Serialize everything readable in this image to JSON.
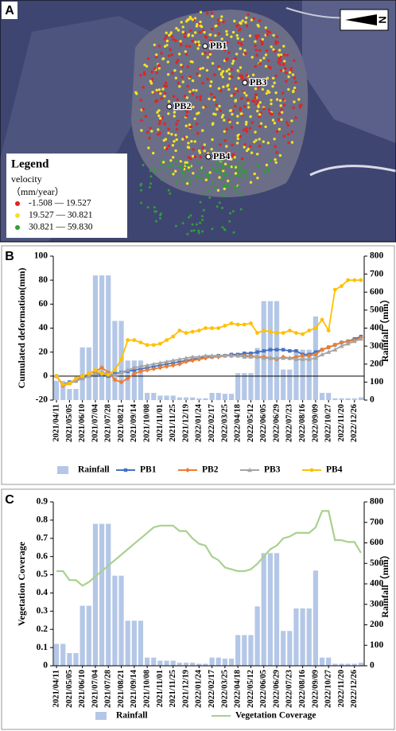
{
  "map": {
    "label": "A",
    "north": "N",
    "legend_title": "Legend",
    "legend_field": "velocity",
    "legend_unit": "（mm/year）",
    "classes": [
      {
        "label": "-1.508 — 19.527",
        "color": "#e02424"
      },
      {
        "label": "19.527 — 30.821",
        "color": "#f2e22a"
      },
      {
        "label": "30.821 — 59.830",
        "color": "#2f9e3a"
      }
    ],
    "points": [
      "PB1",
      "PB2",
      "PB3",
      "PB4"
    ]
  },
  "chart_data": [
    {
      "type": "combo",
      "label": "B",
      "categories": [
        "2021/04/11",
        null,
        "2021/05/05",
        null,
        "2021/06/10",
        null,
        "2021/07/04",
        null,
        "2021/07/28",
        null,
        "2021/08/21",
        null,
        "2021/09/14",
        null,
        "2021/10/08",
        null,
        "2021/11/01",
        null,
        "2021/11/25",
        null,
        "2021/12/19",
        null,
        "2022/01/24",
        null,
        "2022/02/17",
        null,
        "2022/03/25",
        null,
        "2022/04/18",
        null,
        "2022/05/12",
        null,
        "2022/06/05",
        null,
        "2022/06/29",
        null,
        "2022/07/23",
        null,
        "2022/08/16",
        null,
        "2022/09/09",
        null,
        "2022/10/27",
        null,
        "2022/11/20",
        null,
        "2022/12/26",
        null
      ],
      "ylabel": "Cumulated deformation(mm)",
      "y2label": "Rainfall（mm）",
      "ylim": [
        -20,
        100
      ],
      "yticks": [
        -20,
        0,
        20,
        40,
        60,
        80,
        100
      ],
      "y2lim": [
        0,
        800
      ],
      "y2ticks": [
        0,
        100,
        200,
        300,
        400,
        500,
        600,
        700,
        800
      ],
      "series": [
        {
          "name": "Rainfall",
          "kind": "bar",
          "axis": "y2",
          "color": "#b4c7e7",
          "values": [
            107,
            107,
            62,
            62,
            293,
            293,
            693,
            693,
            693,
            440,
            440,
            220,
            220,
            220,
            40,
            40,
            25,
            25,
            25,
            15,
            15,
            15,
            10,
            10,
            40,
            40,
            35,
            35,
            150,
            150,
            150,
            290,
            550,
            550,
            550,
            170,
            170,
            280,
            280,
            280,
            465,
            40,
            40,
            10,
            10,
            10,
            10,
            15
          ]
        },
        {
          "name": "PB1",
          "kind": "line",
          "marker": "square",
          "color": "#4472c4",
          "values": [
            0,
            -7,
            -5,
            -4,
            -2,
            0,
            2,
            1,
            0,
            2,
            3,
            4,
            5,
            6,
            7,
            8,
            9,
            10,
            11,
            12,
            13,
            14,
            15,
            16,
            16,
            17,
            17,
            18,
            18,
            19,
            19,
            20,
            21,
            22,
            22,
            22,
            21,
            21,
            18,
            18,
            20,
            22,
            24,
            26,
            28,
            29,
            31,
            33
          ]
        },
        {
          "name": "PB2",
          "kind": "line",
          "marker": "diamond",
          "color": "#ed7d31",
          "values": [
            0,
            -8,
            -6,
            -4,
            0,
            2,
            4,
            7,
            3,
            -3,
            -5,
            -2,
            2,
            4,
            5,
            6,
            7,
            8,
            9,
            10,
            12,
            13,
            14,
            15,
            16,
            16,
            17,
            17,
            17,
            17,
            17,
            16,
            16,
            15,
            14,
            16,
            15,
            16,
            17,
            17,
            18,
            22,
            24,
            26,
            28,
            29,
            30,
            32
          ]
        },
        {
          "name": "PB3",
          "kind": "line",
          "marker": "triangle",
          "color": "#a5a5a5",
          "values": [
            0,
            -7,
            -6,
            -4,
            -2,
            0,
            2,
            3,
            2,
            1,
            3,
            5,
            7,
            8,
            9,
            10,
            11,
            12,
            13,
            14,
            15,
            16,
            16,
            17,
            17,
            17,
            17,
            17,
            17,
            16,
            16,
            16,
            15,
            15,
            15,
            15,
            15,
            14,
            14,
            14,
            15,
            18,
            20,
            22,
            25,
            27,
            29,
            31
          ]
        },
        {
          "name": "PB4",
          "kind": "line",
          "marker": "circle",
          "color": "#ffc000",
          "values": [
            0,
            -7,
            -6,
            -2,
            0,
            2,
            5,
            2,
            1,
            5,
            14,
            30,
            30,
            28,
            26,
            26,
            27,
            30,
            33,
            38,
            36,
            37,
            38,
            40,
            40,
            40,
            42,
            44,
            43,
            43,
            44,
            36,
            38,
            37,
            36,
            36,
            38,
            36,
            35,
            38,
            40,
            47,
            38,
            72,
            75,
            80,
            80,
            80
          ]
        }
      ]
    },
    {
      "type": "combo",
      "label": "C",
      "categories": [
        "2021/04/11",
        null,
        "2021/05/05",
        null,
        "2021/06/10",
        null,
        "2021/07/04",
        null,
        "2021/07/28",
        null,
        "2021/08/21",
        null,
        "2021/09/14",
        null,
        "2021/10/08",
        null,
        "2021/11/01",
        null,
        "2021/11/25",
        null,
        "2021/12/19",
        null,
        "2022/01/24",
        null,
        "2022/02/17",
        null,
        "2022/03/25",
        null,
        "2022/04/18",
        null,
        "2022/05/12",
        null,
        "2022/06/05",
        null,
        "2022/06/29",
        null,
        "2022/07/23",
        null,
        "2022/08/16",
        null,
        "2022/09/09",
        null,
        "2022/10/27",
        null,
        "2022/11/20",
        null,
        "2022/12/26",
        null
      ],
      "ylabel": "Vegetation Coverage",
      "y2label": "Rainfall（mm）",
      "ylim": [
        0,
        0.9
      ],
      "yticks": [
        0,
        0.1,
        0.2,
        0.3,
        0.4,
        0.5,
        0.6,
        0.7,
        0.8,
        0.9
      ],
      "y2lim": [
        0,
        800
      ],
      "y2ticks": [
        0,
        100,
        200,
        300,
        400,
        500,
        600,
        700,
        800
      ],
      "series": [
        {
          "name": "Rainfall",
          "kind": "bar",
          "axis": "y2",
          "color": "#b4c7e7",
          "values": [
            107,
            107,
            62,
            62,
            293,
            293,
            693,
            693,
            693,
            440,
            440,
            220,
            220,
            220,
            40,
            40,
            25,
            25,
            25,
            15,
            15,
            15,
            10,
            10,
            40,
            40,
            35,
            35,
            150,
            150,
            150,
            290,
            550,
            550,
            550,
            170,
            170,
            280,
            280,
            280,
            465,
            40,
            40,
            10,
            10,
            10,
            10,
            15
          ]
        },
        {
          "name": "Vegetation Coverage",
          "kind": "line",
          "color": "#a9d18e",
          "values": [
            0.52,
            0.52,
            0.47,
            0.47,
            0.44,
            0.46,
            0.49,
            0.52,
            0.55,
            0.58,
            0.61,
            0.64,
            0.67,
            0.7,
            0.73,
            0.76,
            0.77,
            0.77,
            0.77,
            0.74,
            0.74,
            0.7,
            0.67,
            0.66,
            0.6,
            0.58,
            0.54,
            0.53,
            0.52,
            0.52,
            0.53,
            0.56,
            0.6,
            0.64,
            0.66,
            0.7,
            0.71,
            0.73,
            0.73,
            0.73,
            0.76,
            0.85,
            0.85,
            0.69,
            0.69,
            0.68,
            0.68,
            0.62
          ]
        }
      ]
    }
  ]
}
